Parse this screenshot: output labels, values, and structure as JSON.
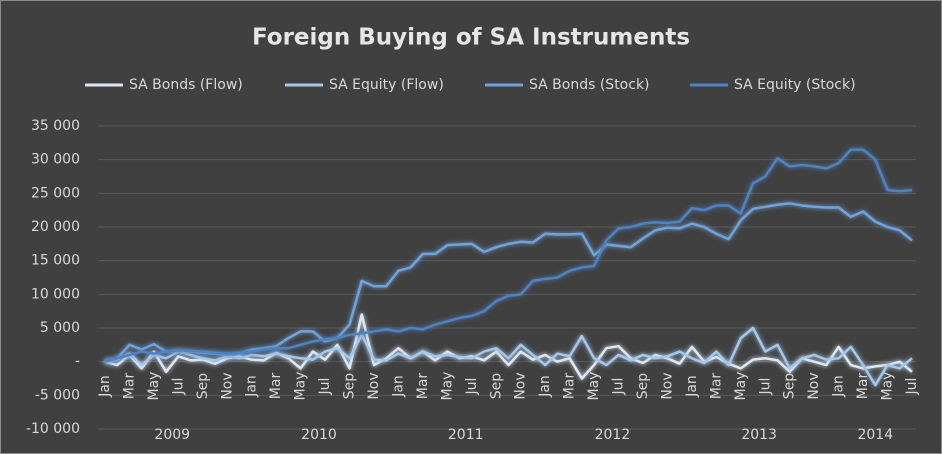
{
  "chart_data": {
    "type": "line",
    "title": "Foreign Buying of SA Instruments",
    "categories": [
      "Jan",
      null,
      "Mar",
      null,
      "May",
      null,
      "Jul",
      null,
      "Sep",
      null,
      "Nov",
      null,
      "Jan",
      null,
      "Mar",
      null,
      "May",
      null,
      "Jul",
      null,
      "Sep",
      null,
      "Nov",
      null,
      "Jan",
      null,
      "Mar",
      null,
      "May",
      null,
      "Jul",
      null,
      "Sep",
      null,
      "Nov",
      null,
      "Jan",
      null,
      "Mar",
      null,
      "May",
      null,
      "Jul",
      null,
      "Sep",
      null,
      "Nov",
      null,
      "Jan",
      null,
      "Mar",
      null,
      "May",
      null,
      "Jul",
      null,
      "Sep",
      null,
      "Nov",
      null,
      "Jan",
      null,
      "Mar",
      null,
      "May",
      null,
      "Jul"
    ],
    "year_groups": [
      "2009",
      "2010",
      "2011",
      "2012",
      "2013",
      "2014"
    ],
    "series": [
      {
        "name": "SA Bonds (Flow)",
        "color": "#dce8f5",
        "values": [
          0,
          -500,
          1000,
          -1000,
          1500,
          -1500,
          800,
          200,
          300,
          -300,
          500,
          800,
          300,
          200,
          1300,
          500,
          -1000,
          1500,
          300,
          2500,
          -1000,
          7000,
          -500,
          500,
          2000,
          500,
          1500,
          200,
          1500,
          500,
          800,
          200,
          1500,
          -500,
          1500,
          300,
          1000,
          0,
          500,
          -2500,
          -500,
          2000,
          2300,
          500,
          -200,
          1000,
          500,
          -300,
          2200,
          0,
          700,
          -300,
          -1000,
          300,
          500,
          200,
          -1500,
          500,
          0,
          -500,
          2200,
          -500,
          -1000,
          -700,
          -500,
          0,
          -1500
        ]
      },
      {
        "name": "SA Equity (Flow)",
        "color": "#a4c8ec",
        "values": [
          0,
          300,
          1200,
          -500,
          1000,
          500,
          1500,
          1000,
          500,
          200,
          800,
          500,
          1000,
          800,
          1200,
          800,
          500,
          300,
          1500,
          2000,
          500,
          4000,
          300,
          200,
          1200,
          500,
          1500,
          800,
          1000,
          700,
          500,
          1500,
          2000,
          500,
          2500,
          1000,
          -500,
          1200,
          800,
          3800,
          500,
          -500,
          1000,
          200,
          1000,
          500,
          800,
          1500,
          500,
          -200,
          1500,
          -500,
          3500,
          5000,
          1500,
          2500,
          -1000,
          500,
          1000,
          300,
          500,
          2200,
          -500,
          -3500,
          -500,
          -1000,
          500
        ]
      },
      {
        "name": "SA Bonds (Stock)",
        "color": "#6fa3dc",
        "values": [
          0,
          500,
          2500,
          1800,
          2600,
          1500,
          1600,
          1500,
          1300,
          1200,
          1000,
          1200,
          1800,
          2000,
          2300,
          3500,
          4500,
          4500,
          3000,
          3500,
          5500,
          12000,
          11200,
          11200,
          13500,
          14000,
          16000,
          16000,
          17300,
          17400,
          17500,
          16300,
          17000,
          17500,
          17800,
          17700,
          19000,
          18900,
          18900,
          19000,
          15800,
          17400,
          17200,
          17000,
          18300,
          19500,
          19900,
          19800,
          20500,
          20000,
          19000,
          18200,
          21000,
          22700,
          23000,
          23300,
          23500,
          23200,
          23000,
          22900,
          22900,
          21500,
          22300,
          20800,
          20000,
          19500,
          18000
        ]
      },
      {
        "name": "SA Equity (Stock)",
        "color": "#4f82c0",
        "values": [
          0,
          500,
          1000,
          1500,
          1200,
          1500,
          1700,
          1600,
          1500,
          1300,
          1200,
          1300,
          1500,
          1800,
          2000,
          2000,
          2500,
          3000,
          3300,
          3500,
          4000,
          4200,
          4500,
          4800,
          4500,
          5000,
          4800,
          5500,
          6000,
          6500,
          6800,
          7500,
          9000,
          9800,
          10000,
          12000,
          12300,
          12500,
          13500,
          14000,
          14200,
          18000,
          19800,
          20000,
          20500,
          20700,
          20600,
          20800,
          22800,
          22500,
          23200,
          23200,
          22000,
          26500,
          27500,
          30200,
          29000,
          29200,
          29000,
          28700,
          29500,
          31500,
          31500,
          30000,
          25500,
          25300,
          25500
        ]
      }
    ],
    "ylim": [
      -10000,
      35000
    ],
    "yticks": [
      {
        "value": -10000,
        "label": "-10 000"
      },
      {
        "value": -5000,
        "label": "-5 000"
      },
      {
        "value": 0,
        "label": "-"
      },
      {
        "value": 5000,
        "label": "5 000"
      },
      {
        "value": 10000,
        "label": "10 000"
      },
      {
        "value": 15000,
        "label": "15 000"
      },
      {
        "value": 20000,
        "label": "20 000"
      },
      {
        "value": 25000,
        "label": "25 000"
      },
      {
        "value": 30000,
        "label": "30 000"
      },
      {
        "value": 35000,
        "label": "35 000"
      }
    ],
    "grid": true
  }
}
